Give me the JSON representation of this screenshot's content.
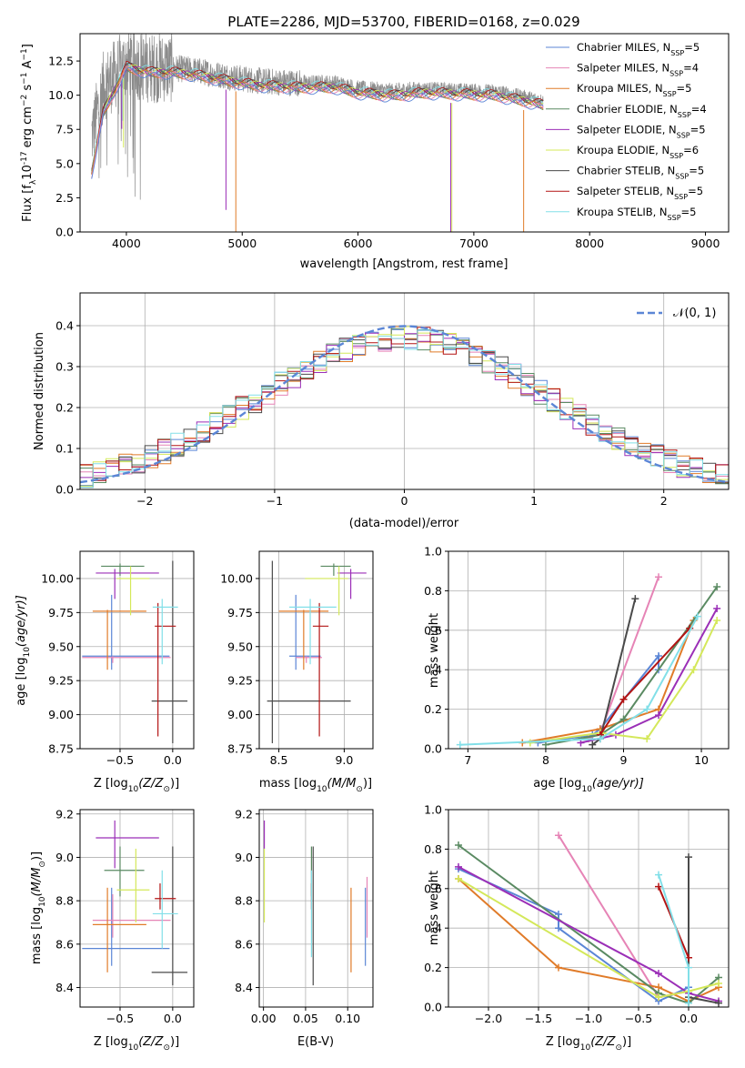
{
  "figure_title": "PLATE=2286, MJD=53700, FIBERID=0168, z=0.029",
  "series": [
    {
      "label": "Chabrier MILES, N",
      "sub": "SSP",
      "suffix": "=5",
      "color": "#5b86d6"
    },
    {
      "label": "Salpeter MILES, N",
      "sub": "SSP",
      "suffix": "=4",
      "color": "#e684b6"
    },
    {
      "label": "Kroupa MILES, N",
      "sub": "SSP",
      "suffix": "=5",
      "color": "#e07b29"
    },
    {
      "label": "Chabrier ELODIE, N",
      "sub": "SSP",
      "suffix": "=4",
      "color": "#5a8a62"
    },
    {
      "label": "Salpeter ELODIE, N",
      "sub": "SSP",
      "suffix": "=5",
      "color": "#9b2fb7"
    },
    {
      "label": "Kroupa ELODIE, N",
      "sub": "SSP",
      "suffix": "=6",
      "color": "#d4e85a"
    },
    {
      "label": "Chabrier STELIB, N",
      "sub": "SSP",
      "suffix": "=5",
      "color": "#4a4a4a"
    },
    {
      "label": "Salpeter STELIB, N",
      "sub": "SSP",
      "suffix": "=5",
      "color": "#b31414"
    },
    {
      "label": "Kroupa STELIB, N",
      "sub": "SSP",
      "suffix": "=5",
      "color": "#82dfe8"
    }
  ],
  "spectrum_panel": {
    "xlabel": "wavelength [Angstrom, rest frame]",
    "ylabel": "Flux [f",
    "ylabel_tail": "10",
    "ylabel_exp": "-17",
    "ylabel_units": " erg cm",
    "ylabel_units2": " s",
    "ylabel_units3": " A",
    "ylabel_end": "]",
    "x_ticks": [
      "4000",
      "5000",
      "6000",
      "7000",
      "8000",
      "9000"
    ],
    "y_ticks": [
      "0.0",
      "2.5",
      "5.0",
      "7.5",
      "10.0",
      "12.5"
    ]
  },
  "hist_panel": {
    "xlabel": "(data-model)/error",
    "ylabel": "Normed distribution",
    "legend": "𝒩(0, 1)",
    "x_ticks": [
      "−2",
      "−1",
      "0",
      "1",
      "2"
    ],
    "y_ticks": [
      "0.0",
      "0.1",
      "0.2",
      "0.3",
      "0.4"
    ]
  },
  "panels": {
    "zage": {
      "xlabel": "Z [log",
      "xlabel_mid": "10",
      "xlabel_tail": "(Z/Z",
      "xlabel_sun": "⊙",
      "xlabel_end": ")]",
      "ylabel": "age  [log",
      "ylabel_mid": "10",
      "ylabel_tail": "(age/yr)]"
    },
    "massage": {
      "xlabel": "mass [log",
      "xlabel_mid": "10",
      "xlabel_tail": "(M/M",
      "xlabel_sun": "⊙",
      "xlabel_end": ")]"
    },
    "agemw": {
      "xlabel": "age  [log",
      "xlabel_mid": "10",
      "xlabel_tail": "(age/yr)]",
      "ylabel": "mass weight"
    },
    "zmass": {
      "xlabel": "Z [log",
      "xlabel_mid": "10",
      "xlabel_tail": "(Z/Z",
      "xlabel_sun": "⊙",
      "xlabel_end": ")]",
      "ylabel": "mass [log",
      "ylabel_mid": "10",
      "ylabel_tail": "(M/M",
      "ylabel_sun": "⊙",
      "ylabel_end": ")]"
    },
    "ebvmass": {
      "xlabel": "E(B-V)"
    },
    "zmw": {
      "xlabel": "Z [log",
      "xlabel_mid": "10",
      "xlabel_tail": "(Z/Z",
      "xlabel_sun": "⊙",
      "xlabel_end": ")]",
      "ylabel": "mass weight"
    }
  },
  "chart_data": [
    {
      "type": "line",
      "title": "PLATE=2286, MJD=53700, FIBERID=0168, z=0.029",
      "xlim": [
        3600,
        9200
      ],
      "ylim": [
        0,
        14.5
      ],
      "grid": false,
      "legend": "top-right",
      "spectrum_envelope": {
        "x": [
          3700,
          3800,
          3900,
          4000,
          4100,
          4200,
          4400,
          4600,
          4800,
          5000,
          5200,
          5500,
          5800,
          6000,
          6300,
          6600,
          6900,
          7200,
          7500,
          7600
        ],
        "y": [
          7.0,
          10.6,
          11.5,
          12.4,
          12.2,
          12.0,
          12.0,
          11.8,
          11.5,
          11.2,
          11.0,
          10.9,
          10.9,
          10.5,
          10.3,
          10.5,
          10.4,
          10.3,
          9.8,
          9.6
        ]
      }
    },
    {
      "type": "line",
      "xlabel": "(data-model)/error",
      "ylabel": "Normed distribution",
      "xlim": [
        -2.5,
        2.5
      ],
      "ylim": [
        0,
        0.48
      ],
      "grid": true,
      "legend": "top-right",
      "normal_curve": {
        "mu": 0,
        "sigma": 1
      },
      "bin_width": 0.1
    },
    {
      "type": "scatter",
      "xlabel": "Z [log10(Z/Z⊙)]",
      "ylabel": "age [log10(age/yr)]",
      "xlim": [
        -0.88,
        0.2
      ],
      "ylim": [
        8.75,
        10.2
      ],
      "grid": true,
      "points": [
        {
          "s": 0,
          "x": -0.58,
          "y": 9.43,
          "xe": [
            -0.86,
            -0.03
          ],
          "ye": [
            9.33,
            9.88
          ]
        },
        {
          "s": 1,
          "x": -0.57,
          "y": 9.42,
          "xe": [
            -0.86,
            -0.02
          ],
          "ye": [
            9.38,
            9.43
          ]
        },
        {
          "s": 2,
          "x": -0.62,
          "y": 9.76,
          "xe": [
            -0.76,
            -0.25
          ],
          "ye": [
            9.33,
            9.77
          ]
        },
        {
          "s": 3,
          "x": -0.5,
          "y": 10.09,
          "xe": [
            -0.68,
            -0.27
          ],
          "ye": [
            10.02,
            10.11
          ]
        },
        {
          "s": 4,
          "x": -0.55,
          "y": 10.04,
          "xe": [
            -0.73,
            -0.13
          ],
          "ye": [
            9.85,
            10.07
          ]
        },
        {
          "s": 5,
          "x": -0.4,
          "y": 10.0,
          "xe": [
            -0.53,
            -0.22
          ],
          "ye": [
            9.73,
            10.09
          ]
        },
        {
          "s": 6,
          "x": 0.0,
          "y": 9.1,
          "xe": [
            -0.2,
            0.14
          ],
          "ye": [
            8.79,
            10.13
          ]
        },
        {
          "s": 7,
          "x": -0.14,
          "y": 9.65,
          "xe": [
            -0.17,
            0.03
          ],
          "ye": [
            8.84,
            9.82
          ]
        },
        {
          "s": 8,
          "x": -0.1,
          "y": 9.79,
          "xe": [
            -0.19,
            0.05
          ],
          "ye": [
            9.37,
            9.85
          ]
        }
      ]
    },
    {
      "type": "scatter",
      "xlabel": "mass [log10(M/M⊙)]",
      "xlim": [
        8.35,
        9.22
      ],
      "ylim": [
        8.75,
        10.2
      ],
      "grid": true,
      "points": [
        {
          "s": 0,
          "x": 8.63,
          "y": 9.43,
          "xe": [
            8.58,
            8.82
          ],
          "ye": [
            9.33,
            9.88
          ]
        },
        {
          "s": 1,
          "x": 8.71,
          "y": 9.42,
          "xe": [
            8.63,
            8.83
          ],
          "ye": [
            9.38,
            9.43
          ]
        },
        {
          "s": 2,
          "x": 8.69,
          "y": 9.76,
          "xe": [
            8.5,
            8.88
          ],
          "ye": [
            9.33,
            9.77
          ]
        },
        {
          "s": 3,
          "x": 8.92,
          "y": 10.09,
          "xe": [
            8.82,
            9.05
          ],
          "ye": [
            10.02,
            10.11
          ]
        },
        {
          "s": 4,
          "x": 9.05,
          "y": 10.04,
          "xe": [
            8.95,
            9.17
          ],
          "ye": [
            9.85,
            10.07
          ]
        },
        {
          "s": 5,
          "x": 8.96,
          "y": 10.0,
          "xe": [
            8.7,
            9.03
          ],
          "ye": [
            9.73,
            10.09
          ]
        },
        {
          "s": 6,
          "x": 8.45,
          "y": 9.1,
          "xe": [
            8.41,
            9.05
          ],
          "ye": [
            8.79,
            10.13
          ]
        },
        {
          "s": 7,
          "x": 8.81,
          "y": 9.65,
          "xe": [
            8.76,
            8.88
          ],
          "ye": [
            8.84,
            9.82
          ]
        },
        {
          "s": 8,
          "x": 8.74,
          "y": 9.79,
          "xe": [
            8.58,
            8.94
          ],
          "ye": [
            9.37,
            9.85
          ]
        }
      ]
    },
    {
      "type": "line",
      "xlabel": "age [log10(age/yr)]",
      "ylabel": "mass weight",
      "xlim": [
        6.75,
        10.35
      ],
      "ylim": [
        0,
        1.0
      ],
      "grid": true,
      "series": [
        {
          "s": 0,
          "x": [
            7.9,
            8.6,
            8.7,
            9.45,
            9.45
          ],
          "y": [
            0.03,
            0.07,
            0.1,
            0.47,
            0.4
          ]
        },
        {
          "s": 1,
          "x": [
            8.55,
            8.7,
            9.45
          ],
          "y": [
            0.05,
            0.08,
            0.87
          ]
        },
        {
          "s": 2,
          "x": [
            7.7,
            8.7,
            9.45,
            9.9
          ],
          "y": [
            0.03,
            0.1,
            0.2,
            0.65
          ]
        },
        {
          "s": 3,
          "x": [
            8.0,
            8.7,
            9.0,
            10.2
          ],
          "y": [
            0.02,
            0.07,
            0.15,
            0.82
          ]
        },
        {
          "s": 4,
          "x": [
            8.45,
            8.9,
            9.45,
            10.2
          ],
          "y": [
            0.03,
            0.07,
            0.17,
            0.71
          ]
        },
        {
          "s": 5,
          "x": [
            7.8,
            8.7,
            9.3,
            9.9,
            10.2
          ],
          "y": [
            0.03,
            0.08,
            0.05,
            0.4,
            0.65
          ]
        },
        {
          "s": 6,
          "x": [
            8.6,
            8.7,
            9.15
          ],
          "y": [
            0.02,
            0.05,
            0.76
          ]
        },
        {
          "s": 7,
          "x": [
            8.7,
            9.0,
            9.85
          ],
          "y": [
            0.07,
            0.25,
            0.61
          ]
        },
        {
          "s": 8,
          "x": [
            6.9,
            8.7,
            9.3,
            9.95
          ],
          "y": [
            0.02,
            0.05,
            0.2,
            0.67
          ]
        }
      ]
    },
    {
      "type": "scatter",
      "xlabel": "Z [log10(Z/Z⊙)]",
      "ylabel": "mass [log10(M/M⊙)]",
      "xlim": [
        -0.88,
        0.2
      ],
      "ylim": [
        8.31,
        9.22
      ],
      "grid": true,
      "points": [
        {
          "s": 0,
          "x": -0.58,
          "y": 8.58,
          "xe": [
            -0.86,
            -0.03
          ],
          "ye": [
            8.5,
            8.86
          ]
        },
        {
          "s": 1,
          "x": -0.57,
          "y": 8.71,
          "xe": [
            -0.76,
            -0.02
          ],
          "ye": [
            8.63,
            8.83
          ]
        },
        {
          "s": 2,
          "x": -0.62,
          "y": 8.69,
          "xe": [
            -0.76,
            -0.25
          ],
          "ye": [
            8.47,
            8.86
          ]
        },
        {
          "s": 3,
          "x": -0.5,
          "y": 8.94,
          "xe": [
            -0.65,
            -0.27
          ],
          "ye": [
            8.82,
            9.05
          ]
        },
        {
          "s": 4,
          "x": -0.55,
          "y": 9.09,
          "xe": [
            -0.73,
            -0.13
          ],
          "ye": [
            8.95,
            9.17
          ]
        },
        {
          "s": 5,
          "x": -0.35,
          "y": 8.85,
          "xe": [
            -0.53,
            -0.22
          ],
          "ye": [
            8.7,
            9.04
          ]
        },
        {
          "s": 6,
          "x": 0.0,
          "y": 8.47,
          "xe": [
            -0.2,
            0.14
          ],
          "ye": [
            8.41,
            9.05
          ]
        },
        {
          "s": 7,
          "x": -0.12,
          "y": 8.81,
          "xe": [
            -0.17,
            0.03
          ],
          "ye": [
            8.76,
            8.88
          ]
        },
        {
          "s": 8,
          "x": -0.1,
          "y": 8.74,
          "xe": [
            -0.19,
            0.05
          ],
          "ye": [
            8.58,
            8.94
          ]
        }
      ]
    },
    {
      "type": "scatter",
      "xlabel": "E(B-V)",
      "xlim": [
        -0.005,
        0.13
      ],
      "ylim": [
        8.31,
        9.22
      ],
      "grid": true,
      "points": [
        {
          "s": 0,
          "x": 0.121,
          "y": 8.58,
          "ye": [
            8.5,
            8.86
          ]
        },
        {
          "s": 1,
          "x": 0.123,
          "y": 8.71,
          "ye": [
            8.63,
            8.91
          ]
        },
        {
          "s": 2,
          "x": 0.104,
          "y": 8.69,
          "ye": [
            8.47,
            8.86
          ]
        },
        {
          "s": 3,
          "x": 0.057,
          "y": 8.94,
          "ye": [
            8.82,
            9.05
          ]
        },
        {
          "s": 4,
          "x": 0.001,
          "y": 9.09,
          "ye": [
            9.04,
            9.17
          ]
        },
        {
          "s": 5,
          "x": 0.001,
          "y": 8.85,
          "ye": [
            8.7,
            9.04
          ]
        },
        {
          "s": 6,
          "x": 0.059,
          "y": 8.47,
          "ye": [
            8.41,
            9.05
          ]
        },
        {
          "s": 7,
          "x": 0.057,
          "y": 8.81,
          "ye": [
            8.76,
            8.88
          ]
        },
        {
          "s": 8,
          "x": 0.057,
          "y": 8.74,
          "ye": [
            8.54,
            8.94
          ]
        }
      ]
    },
    {
      "type": "line",
      "xlabel": "Z [log10(Z/Z⊙)]",
      "ylabel": "mass weight",
      "xlim": [
        -2.4,
        0.4
      ],
      "ylim": [
        0,
        1.0
      ],
      "grid": true,
      "series": [
        {
          "s": 0,
          "x": [
            -2.3,
            -1.3,
            -1.3,
            -0.3,
            0.0
          ],
          "y": [
            0.7,
            0.47,
            0.4,
            0.03,
            0.1
          ]
        },
        {
          "s": 1,
          "x": [
            -1.3,
            -0.3,
            0.0
          ],
          "y": [
            0.87,
            0.05,
            0.08
          ]
        },
        {
          "s": 2,
          "x": [
            -2.3,
            -1.3,
            -0.3,
            0.0,
            0.3
          ],
          "y": [
            0.65,
            0.2,
            0.1,
            0.03,
            0.1
          ]
        },
        {
          "s": 3,
          "x": [
            -2.3,
            -0.3,
            0.0,
            0.3
          ],
          "y": [
            0.82,
            0.07,
            0.02,
            0.15
          ]
        },
        {
          "s": 4,
          "x": [
            -2.3,
            -0.3,
            0.0,
            0.3
          ],
          "y": [
            0.71,
            0.17,
            0.07,
            0.03
          ]
        },
        {
          "s": 5,
          "x": [
            -2.3,
            -0.3,
            0.0,
            0.3
          ],
          "y": [
            0.65,
            0.05,
            0.08,
            0.12
          ]
        },
        {
          "s": 6,
          "x": [
            0.0,
            0.0,
            0.3
          ],
          "y": [
            0.76,
            0.05,
            0.02
          ]
        },
        {
          "s": 7,
          "x": [
            -0.3,
            0.0
          ],
          "y": [
            0.61,
            0.25
          ]
        },
        {
          "s": 8,
          "x": [
            -0.3,
            0.0,
            0.0
          ],
          "y": [
            0.67,
            0.2,
            0.02
          ]
        }
      ]
    }
  ]
}
